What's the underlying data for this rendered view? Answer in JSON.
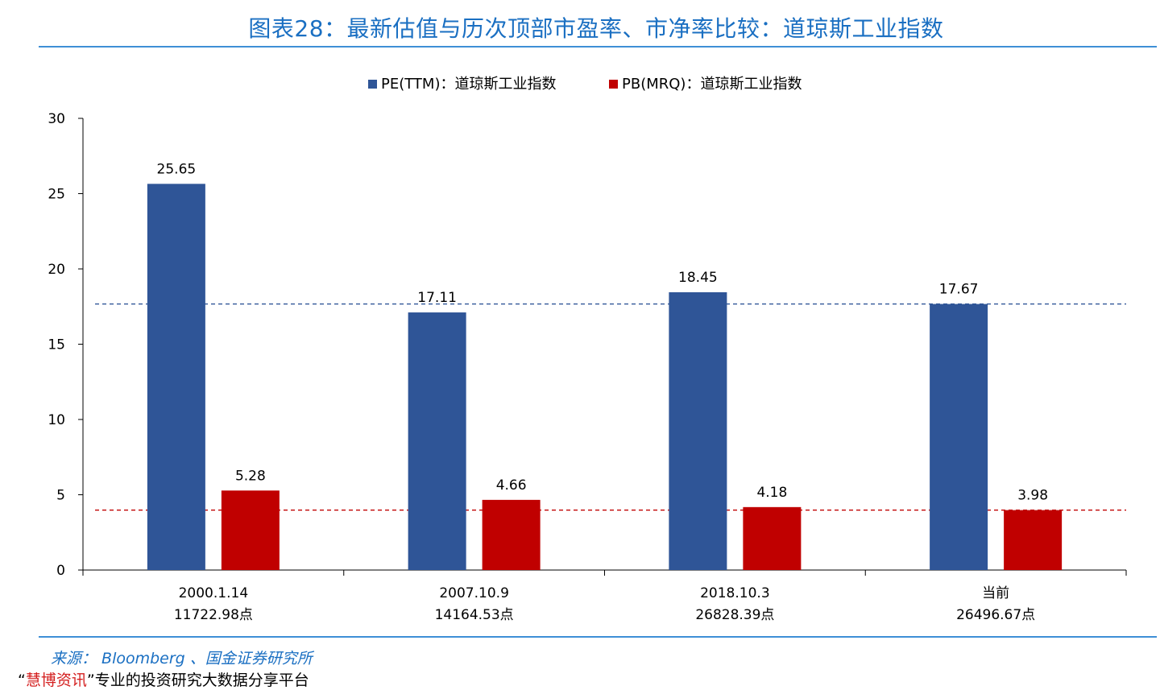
{
  "title": "图表28：最新估值与历次顶部市盈率、市净率比较：道琼斯工业指数",
  "source": "来源： Bloomberg 、国金证券研究所",
  "watermark": {
    "open_quote": "“",
    "brand": "慧博资讯",
    "close_quote": "”",
    "tagline": "专业的投资研究大数据分享平台"
  },
  "colors": {
    "pe": "#2f5597",
    "pb": "#c00000",
    "title": "#1a6fc2"
  },
  "chart_data": {
    "type": "bar",
    "title": "图表28：最新估值与历次顶部市盈率、市净率比较：道琼斯工业指数",
    "categories": [
      {
        "date": "2000.1.14",
        "level": "11722.98点"
      },
      {
        "date": "2007.10.9",
        "level": "14164.53点"
      },
      {
        "date": "2018.10.3",
        "level": "26828.39点"
      },
      {
        "date": "当前",
        "level": "26496.67点"
      }
    ],
    "series": [
      {
        "name": "PE(TTM)：道琼斯工业指数",
        "values": [
          25.65,
          17.11,
          18.45,
          17.67
        ],
        "labels": [
          "25.65",
          "17.11",
          "18.45",
          "17.67"
        ]
      },
      {
        "name": "PB(MRQ)：道琼斯工业指数",
        "values": [
          5.28,
          4.66,
          4.18,
          3.98
        ],
        "labels": [
          "5.28",
          "4.66",
          "4.18",
          "3.98"
        ]
      }
    ],
    "reference_lines": [
      {
        "series": "PE(TTM)：道琼斯工业指数",
        "value": 17.67,
        "style": "dashed"
      },
      {
        "series": "PB(MRQ)：道琼斯工业指数",
        "value": 3.98,
        "style": "dashed"
      }
    ],
    "ylim": [
      0,
      30
    ],
    "yticks": [
      0,
      5,
      10,
      15,
      20,
      25,
      30
    ],
    "ytick_labels": [
      "0",
      "5",
      "10",
      "15",
      "20",
      "25",
      "30"
    ],
    "xlabel": "",
    "ylabel": "",
    "legend_position": "top-center",
    "grid": false
  }
}
